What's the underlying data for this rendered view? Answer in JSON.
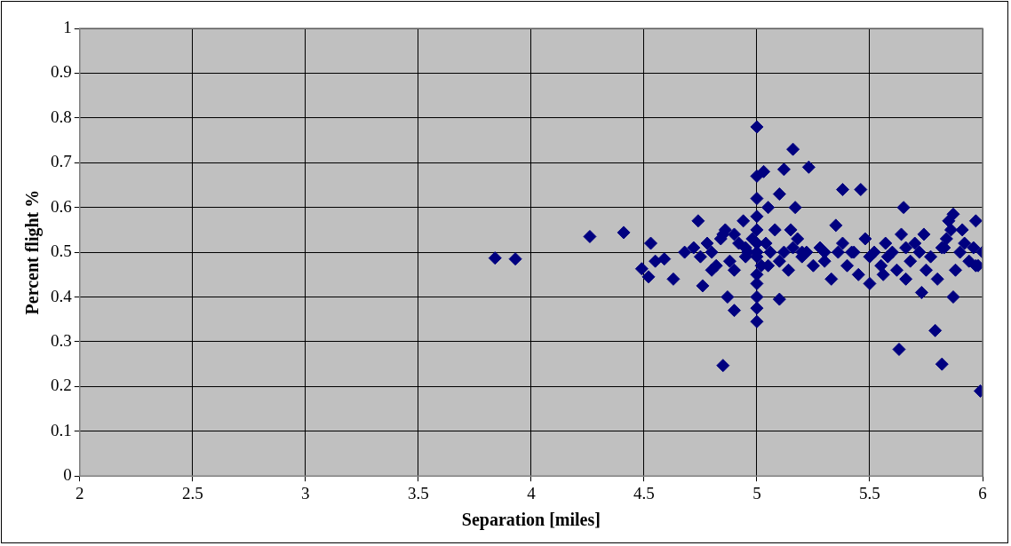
{
  "chart_data": {
    "type": "scatter",
    "xlabel": "Separation [miles]",
    "ylabel": "Percent flight %",
    "marker": "diamond",
    "grid": true,
    "legend": false,
    "xlim": [
      2,
      6
    ],
    "xticks": [
      2,
      2.5,
      3,
      3.5,
      4,
      4.5,
      5,
      5.5,
      6
    ],
    "ylim": [
      0,
      1
    ],
    "yticks": [
      0,
      0.1,
      0.2,
      0.3,
      0.4,
      0.5,
      0.6,
      0.7,
      0.8,
      0.9,
      1
    ],
    "series": [
      {
        "color": "#000080",
        "x": [
          3.84,
          3.93,
          4.26,
          4.41,
          4.53,
          4.74,
          4.49,
          4.52,
          4.63,
          4.55,
          4.59,
          4.76,
          4.87,
          4.9,
          4.85,
          5.0,
          5.0,
          5.03,
          5.16,
          5.12,
          5.23,
          5.1,
          5.17,
          5.46,
          5.65,
          5.87,
          5.97,
          5.99,
          5.82,
          5.79,
          5.63,
          5.73,
          5.87,
          5.0,
          5.0,
          5.1,
          4.68,
          4.72,
          4.75,
          4.78,
          4.8,
          4.82,
          4.84,
          4.86,
          4.88,
          4.9,
          4.92,
          4.94,
          4.96,
          4.98,
          5.0,
          5.0,
          5.0,
          5.0,
          5.0,
          5.0,
          5.0,
          5.02,
          5.04,
          5.06,
          5.08,
          5.1,
          5.12,
          5.14,
          5.16,
          5.18,
          5.2,
          5.22,
          5.25,
          5.28,
          5.3,
          5.33,
          5.36,
          5.38,
          5.4,
          5.43,
          5.45,
          5.48,
          5.5,
          5.52,
          5.55,
          5.57,
          5.6,
          5.62,
          5.64,
          5.66,
          5.68,
          5.7,
          5.72,
          5.75,
          5.77,
          5.8,
          5.82,
          5.84,
          5.86,
          5.88,
          5.9,
          5.92,
          5.94,
          5.96,
          5.98,
          6.0,
          4.8,
          4.85,
          4.9,
          4.95,
          5.05,
          5.15,
          5.2,
          5.3,
          5.35,
          5.42,
          5.5,
          5.58,
          5.66,
          5.74,
          5.83,
          5.91,
          5.97,
          4.95,
          5.0,
          5.0,
          5.05,
          5.38,
          5.56,
          5.85
        ],
        "values": [
          0.487,
          0.485,
          0.535,
          0.544,
          0.52,
          0.57,
          0.463,
          0.445,
          0.44,
          0.48,
          0.485,
          0.425,
          0.4,
          0.37,
          0.247,
          0.78,
          0.67,
          0.68,
          0.73,
          0.685,
          0.69,
          0.63,
          0.6,
          0.64,
          0.6,
          0.585,
          0.57,
          0.19,
          0.25,
          0.325,
          0.283,
          0.41,
          0.4,
          0.375,
          0.345,
          0.395,
          0.5,
          0.51,
          0.49,
          0.52,
          0.5,
          0.47,
          0.53,
          0.55,
          0.48,
          0.46,
          0.52,
          0.57,
          0.5,
          0.53,
          0.55,
          0.58,
          0.62,
          0.45,
          0.43,
          0.4,
          0.5,
          0.47,
          0.52,
          0.5,
          0.55,
          0.48,
          0.5,
          0.46,
          0.51,
          0.53,
          0.49,
          0.5,
          0.47,
          0.51,
          0.5,
          0.44,
          0.5,
          0.52,
          0.47,
          0.5,
          0.45,
          0.53,
          0.49,
          0.5,
          0.47,
          0.52,
          0.5,
          0.46,
          0.54,
          0.51,
          0.48,
          0.52,
          0.5,
          0.46,
          0.49,
          0.44,
          0.51,
          0.53,
          0.55,
          0.46,
          0.5,
          0.52,
          0.48,
          0.51,
          0.47,
          0.5,
          0.46,
          0.54,
          0.54,
          0.49,
          0.47,
          0.55,
          0.5,
          0.48,
          0.56,
          0.5,
          0.43,
          0.49,
          0.44,
          0.54,
          0.51,
          0.55,
          0.47,
          0.51,
          0.52,
          0.49,
          0.6,
          0.64,
          0.45,
          0.57
        ]
      }
    ]
  }
}
